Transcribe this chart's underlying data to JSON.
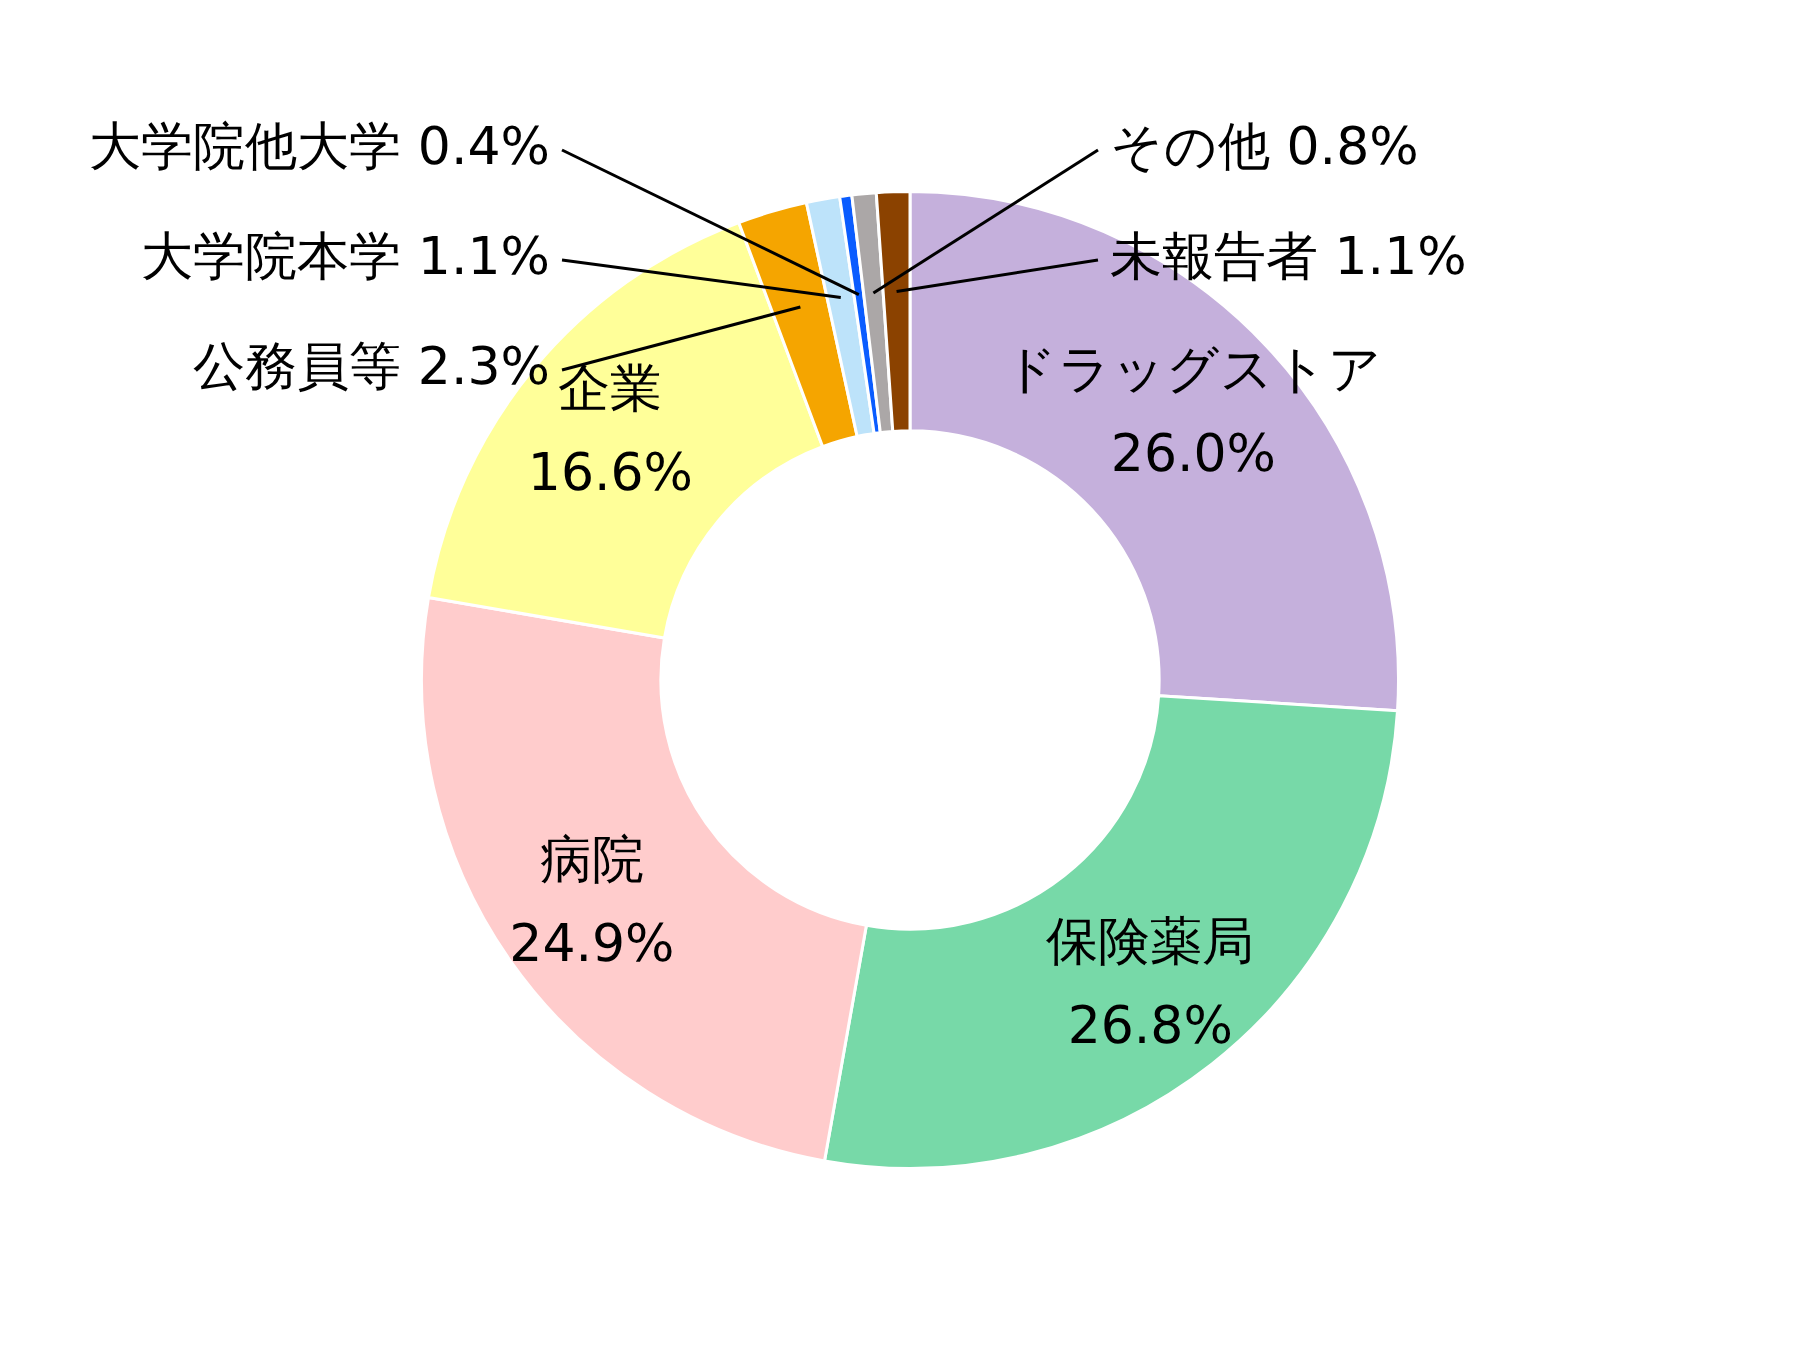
{
  "chart_data": {
    "type": "donut",
    "categories": [
      "ドラッグストア",
      "保険薬局",
      "病院",
      "企業",
      "公務員等",
      "大学院本学",
      "大学院他大学",
      "その他",
      "未報告者"
    ],
    "values": [
      26.0,
      26.8,
      24.9,
      16.6,
      2.3,
      1.1,
      0.4,
      0.8,
      1.1
    ],
    "colors": [
      "#c5b0dc",
      "#77d9a8",
      "#ffcccc",
      "#ffff99",
      "#f5a500",
      "#bde3fa",
      "#0a5cff",
      "#aba7a7",
      "#8b4200"
    ],
    "value_labels": [
      "26.0%",
      "26.8%",
      "24.9%",
      "16.6%",
      "2.3%",
      "1.1%",
      "0.4%",
      "0.8%",
      "1.1%"
    ],
    "data_labels": true,
    "legend": false
  }
}
